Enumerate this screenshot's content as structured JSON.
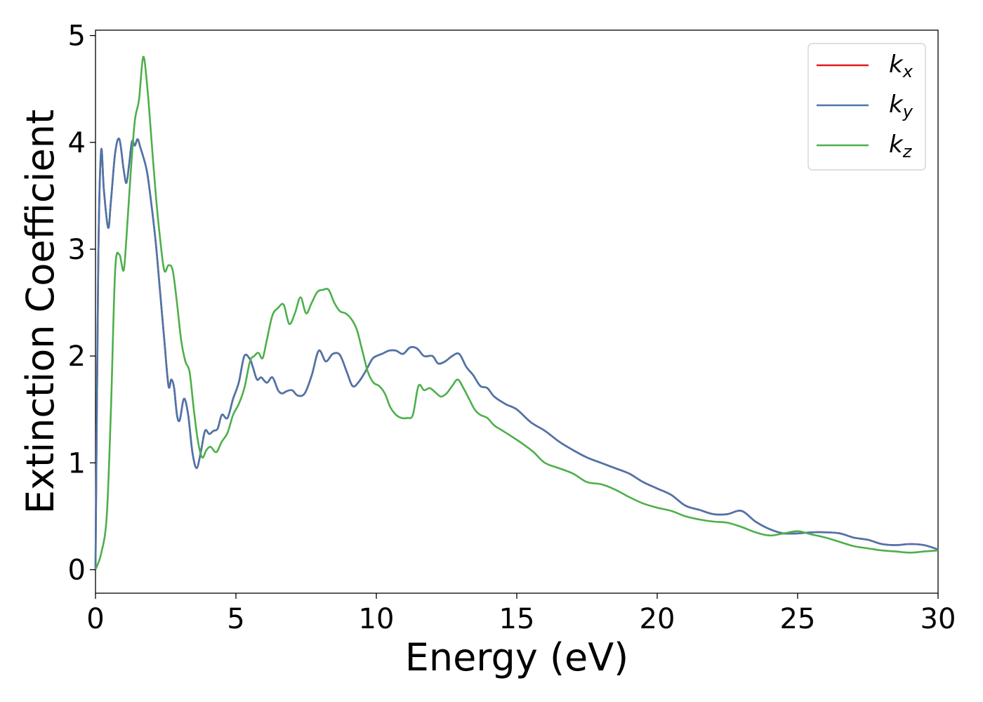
{
  "chart_data": {
    "type": "line",
    "xlabel": "Energy (eV)",
    "ylabel": "Extinction Coefficient",
    "xlim": [
      0,
      30
    ],
    "ylim": [
      -0.22,
      5.05
    ],
    "xticks": [
      0,
      5,
      10,
      15,
      20,
      25,
      30
    ],
    "yticks": [
      0,
      1,
      2,
      3,
      4,
      5
    ],
    "grid": false,
    "legend_position": "top-right",
    "series": [
      {
        "name": "k_x",
        "base": "k",
        "sub": "x",
        "color": "#e41a1c",
        "x": [
          0,
          0.1,
          0.2,
          0.3,
          0.45,
          0.55,
          0.7,
          0.85,
          1.0,
          1.1,
          1.2,
          1.3,
          1.4,
          1.5,
          1.6,
          1.75,
          1.85,
          2.0,
          2.15,
          2.3,
          2.45,
          2.6,
          2.7,
          2.8,
          2.9,
          3.0,
          3.15,
          3.3,
          3.45,
          3.6,
          3.75,
          3.9,
          4.05,
          4.2,
          4.35,
          4.5,
          4.7,
          4.9,
          5.1,
          5.3,
          5.5,
          5.6,
          5.75,
          5.9,
          6.1,
          6.3,
          6.5,
          6.65,
          6.8,
          7.0,
          7.2,
          7.45,
          7.7,
          7.95,
          8.2,
          8.45,
          8.7,
          8.95,
          9.15,
          9.35,
          9.6,
          9.85,
          10.0,
          10.2,
          10.45,
          10.7,
          10.95,
          11.2,
          11.45,
          11.7,
          12.0,
          12.2,
          12.45,
          12.7,
          12.95,
          13.2,
          13.45,
          13.7,
          13.95,
          14.2,
          14.6,
          15.0,
          15.5,
          16.0,
          16.5,
          17.0,
          17.5,
          18.0,
          18.5,
          19.0,
          19.5,
          20.0,
          20.5,
          21.0,
          21.5,
          22.0,
          22.5,
          23.0,
          23.5,
          24.0,
          24.5,
          25.0,
          25.5,
          26.0,
          26.5,
          27.0,
          27.5,
          28.0,
          28.5,
          29.0,
          29.5,
          30.0
        ],
        "values": [
          0,
          2.9,
          3.92,
          3.55,
          3.2,
          3.45,
          3.9,
          4.03,
          3.75,
          3.62,
          3.8,
          4.01,
          3.97,
          4.03,
          3.95,
          3.82,
          3.7,
          3.4,
          3.05,
          2.6,
          2.15,
          1.72,
          1.78,
          1.7,
          1.45,
          1.4,
          1.6,
          1.45,
          1.1,
          0.95,
          1.1,
          1.3,
          1.27,
          1.3,
          1.32,
          1.45,
          1.42,
          1.6,
          1.75,
          2.0,
          1.97,
          1.9,
          1.78,
          1.8,
          1.75,
          1.8,
          1.68,
          1.65,
          1.67,
          1.68,
          1.63,
          1.65,
          1.82,
          2.05,
          1.95,
          2.02,
          2.01,
          1.85,
          1.72,
          1.75,
          1.85,
          1.97,
          2.0,
          2.02,
          2.05,
          2.05,
          2.02,
          2.08,
          2.07,
          2.0,
          2.0,
          1.93,
          1.95,
          2.0,
          2.02,
          1.9,
          1.82,
          1.72,
          1.7,
          1.62,
          1.55,
          1.5,
          1.38,
          1.3,
          1.2,
          1.12,
          1.05,
          1.0,
          0.95,
          0.9,
          0.82,
          0.76,
          0.7,
          0.6,
          0.56,
          0.52,
          0.52,
          0.55,
          0.45,
          0.38,
          0.34,
          0.34,
          0.35,
          0.35,
          0.34,
          0.3,
          0.28,
          0.24,
          0.23,
          0.24,
          0.23,
          0.19
        ]
      },
      {
        "name": "k_y",
        "base": "k",
        "sub": "y",
        "color": "#4a76ab",
        "x": [
          0,
          0.1,
          0.2,
          0.3,
          0.45,
          0.55,
          0.7,
          0.85,
          1.0,
          1.1,
          1.2,
          1.3,
          1.4,
          1.5,
          1.6,
          1.75,
          1.85,
          2.0,
          2.15,
          2.3,
          2.45,
          2.6,
          2.7,
          2.8,
          2.9,
          3.0,
          3.15,
          3.3,
          3.45,
          3.6,
          3.75,
          3.9,
          4.05,
          4.2,
          4.35,
          4.5,
          4.7,
          4.9,
          5.1,
          5.3,
          5.5,
          5.6,
          5.75,
          5.9,
          6.1,
          6.3,
          6.5,
          6.65,
          6.8,
          7.0,
          7.2,
          7.45,
          7.7,
          7.95,
          8.2,
          8.45,
          8.7,
          8.95,
          9.15,
          9.35,
          9.6,
          9.85,
          10.0,
          10.2,
          10.45,
          10.7,
          10.95,
          11.2,
          11.45,
          11.7,
          12.0,
          12.2,
          12.45,
          12.7,
          12.95,
          13.2,
          13.45,
          13.7,
          13.95,
          14.2,
          14.6,
          15.0,
          15.5,
          16.0,
          16.5,
          17.0,
          17.5,
          18.0,
          18.5,
          19.0,
          19.5,
          20.0,
          20.5,
          21.0,
          21.5,
          22.0,
          22.5,
          23.0,
          23.5,
          24.0,
          24.5,
          25.0,
          25.5,
          26.0,
          26.5,
          27.0,
          27.5,
          28.0,
          28.5,
          29.0,
          29.5,
          30.0
        ],
        "values": [
          0,
          2.9,
          3.92,
          3.55,
          3.2,
          3.45,
          3.9,
          4.03,
          3.75,
          3.62,
          3.8,
          4.01,
          3.97,
          4.03,
          3.95,
          3.82,
          3.7,
          3.4,
          3.05,
          2.6,
          2.15,
          1.72,
          1.78,
          1.7,
          1.45,
          1.4,
          1.6,
          1.45,
          1.1,
          0.95,
          1.1,
          1.3,
          1.27,
          1.3,
          1.32,
          1.45,
          1.42,
          1.6,
          1.75,
          2.0,
          1.97,
          1.9,
          1.78,
          1.8,
          1.75,
          1.8,
          1.68,
          1.65,
          1.67,
          1.68,
          1.63,
          1.65,
          1.82,
          2.05,
          1.95,
          2.02,
          2.01,
          1.85,
          1.72,
          1.75,
          1.85,
          1.97,
          2.0,
          2.02,
          2.05,
          2.05,
          2.02,
          2.08,
          2.07,
          2.0,
          2.0,
          1.93,
          1.95,
          2.0,
          2.02,
          1.9,
          1.82,
          1.72,
          1.7,
          1.62,
          1.55,
          1.5,
          1.38,
          1.3,
          1.2,
          1.12,
          1.05,
          1.0,
          0.95,
          0.9,
          0.82,
          0.76,
          0.7,
          0.6,
          0.56,
          0.52,
          0.52,
          0.55,
          0.45,
          0.38,
          0.34,
          0.34,
          0.35,
          0.35,
          0.34,
          0.3,
          0.28,
          0.24,
          0.23,
          0.24,
          0.23,
          0.19
        ]
      },
      {
        "name": "k_z",
        "base": "k",
        "sub": "z",
        "color": "#4daf4a",
        "x": [
          0,
          0.2,
          0.4,
          0.55,
          0.7,
          0.85,
          1.0,
          1.1,
          1.25,
          1.4,
          1.55,
          1.7,
          1.85,
          2.0,
          2.15,
          2.3,
          2.45,
          2.6,
          2.75,
          2.9,
          3.05,
          3.2,
          3.35,
          3.5,
          3.65,
          3.8,
          3.95,
          4.1,
          4.3,
          4.5,
          4.7,
          4.9,
          5.1,
          5.3,
          5.5,
          5.65,
          5.8,
          5.95,
          6.1,
          6.3,
          6.5,
          6.7,
          6.9,
          7.1,
          7.3,
          7.5,
          7.7,
          7.9,
          8.1,
          8.3,
          8.5,
          8.7,
          8.9,
          9.1,
          9.3,
          9.5,
          9.7,
          9.9,
          10.1,
          10.3,
          10.5,
          10.7,
          10.9,
          11.1,
          11.3,
          11.5,
          11.7,
          11.9,
          12.1,
          12.3,
          12.5,
          12.7,
          12.9,
          13.1,
          13.3,
          13.5,
          13.7,
          13.95,
          14.2,
          14.5,
          14.8,
          15.2,
          15.6,
          16.0,
          16.5,
          17.0,
          17.5,
          18.0,
          18.5,
          19.0,
          19.5,
          20.0,
          20.5,
          21.0,
          21.5,
          22.0,
          22.5,
          23.0,
          23.5,
          24.0,
          24.5,
          25.0,
          25.5,
          26.0,
          26.5,
          27.0,
          27.5,
          28.0,
          28.5,
          29.0,
          29.5,
          30.0
        ],
        "values": [
          0,
          0.15,
          0.5,
          1.5,
          2.8,
          2.95,
          2.8,
          3.1,
          3.7,
          4.2,
          4.4,
          4.8,
          4.5,
          4.0,
          3.5,
          3.1,
          2.8,
          2.85,
          2.8,
          2.5,
          2.15,
          1.95,
          1.85,
          1.5,
          1.2,
          1.05,
          1.12,
          1.15,
          1.1,
          1.2,
          1.28,
          1.45,
          1.55,
          1.7,
          1.95,
          2.0,
          2.03,
          1.98,
          2.15,
          2.38,
          2.45,
          2.48,
          2.3,
          2.4,
          2.55,
          2.4,
          2.5,
          2.6,
          2.62,
          2.62,
          2.5,
          2.42,
          2.4,
          2.35,
          2.25,
          2.05,
          1.85,
          1.75,
          1.72,
          1.65,
          1.52,
          1.45,
          1.42,
          1.42,
          1.45,
          1.72,
          1.68,
          1.7,
          1.66,
          1.62,
          1.65,
          1.72,
          1.78,
          1.7,
          1.6,
          1.5,
          1.45,
          1.42,
          1.35,
          1.3,
          1.25,
          1.18,
          1.1,
          1.0,
          0.95,
          0.9,
          0.82,
          0.8,
          0.75,
          0.68,
          0.62,
          0.58,
          0.55,
          0.5,
          0.47,
          0.45,
          0.44,
          0.4,
          0.35,
          0.32,
          0.34,
          0.36,
          0.33,
          0.3,
          0.26,
          0.22,
          0.2,
          0.18,
          0.17,
          0.16,
          0.17,
          0.18
        ]
      }
    ]
  }
}
